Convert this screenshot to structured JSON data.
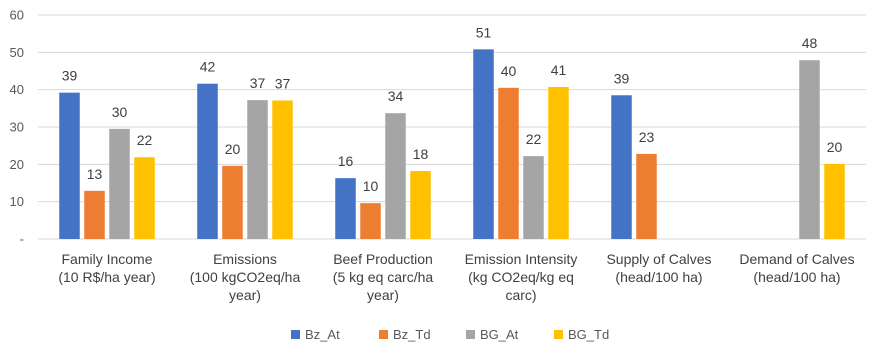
{
  "chart_data": {
    "type": "bar",
    "title": "",
    "xlabel": "",
    "ylabel": "",
    "ylim": [
      0,
      60
    ],
    "yticks": [
      {
        "value": 0,
        "label": "-"
      },
      {
        "value": 10,
        "label": "10"
      },
      {
        "value": 20,
        "label": "20"
      },
      {
        "value": 30,
        "label": "30"
      },
      {
        "value": 40,
        "label": "40"
      },
      {
        "value": 50,
        "label": "50"
      },
      {
        "value": 60,
        "label": "60"
      }
    ],
    "grid": true,
    "legend": "bottom",
    "categories": [
      [
        "Family Income",
        "(10 R$/ha year)"
      ],
      [
        "Emissions",
        "(100 kgCO2eq/ha",
        "year)"
      ],
      [
        "Beef Production",
        "(5 kg eq carc/ha",
        "year)"
      ],
      [
        "Emission Intensity",
        "(kg CO2eq/kg eq",
        "carc)"
      ],
      [
        "Supply of Calves",
        "(head/100 ha)"
      ],
      [
        "Demand of Calves",
        "(head/100 ha)"
      ]
    ],
    "series": [
      {
        "name": "Bz_At",
        "color": "#4472c4",
        "values": [
          39,
          42,
          16,
          51,
          39,
          null
        ],
        "heights": [
          39.2,
          41.6,
          16.3,
          50.8,
          38.5,
          null
        ]
      },
      {
        "name": "Bz_Td",
        "color": "#ed7d31",
        "values": [
          13,
          20,
          10,
          40,
          23,
          null
        ],
        "heights": [
          12.9,
          19.6,
          9.6,
          40.5,
          22.8,
          null
        ]
      },
      {
        "name": "BG_At",
        "color": "#a5a5a5",
        "values": [
          30,
          37,
          34,
          22,
          null,
          48
        ],
        "heights": [
          29.5,
          37.2,
          33.7,
          22.2,
          null,
          47.9
        ]
      },
      {
        "name": "BG_Td",
        "color": "#ffc000",
        "values": [
          22,
          37,
          18,
          41,
          null,
          20
        ],
        "heights": [
          21.9,
          37.1,
          18.2,
          40.7,
          null,
          20.1
        ]
      }
    ]
  }
}
